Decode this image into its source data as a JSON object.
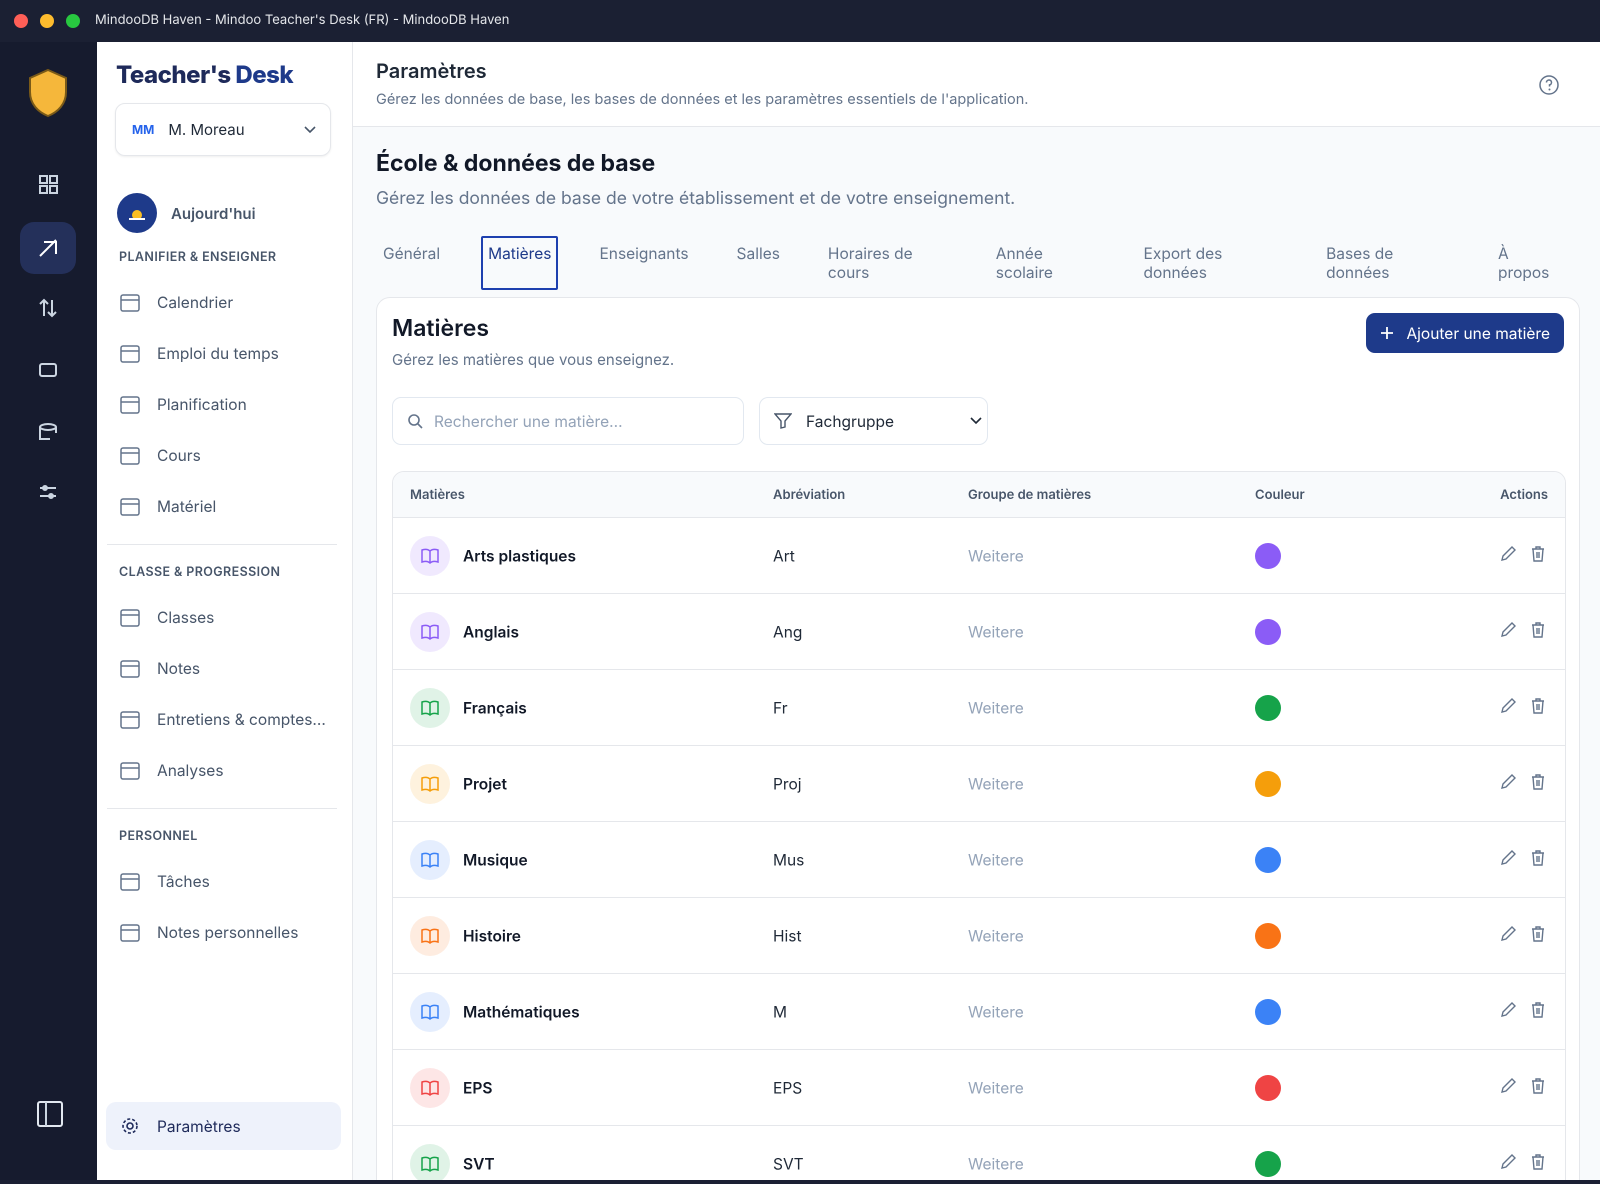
{
  "window_title": "MindooDB Haven - Mindoo Teacher's Desk (FR) - MindooDB Haven",
  "brand": {
    "part1": "Teacher's",
    "part2": "Desk"
  },
  "user": {
    "initials": "MM",
    "name": "M. Moreau"
  },
  "today": "Aujourd'hui",
  "nav_sections": [
    {
      "title": "PLANIFIER & ENSEIGNER",
      "items": [
        "Calendrier",
        "Emploi du temps",
        "Planification",
        "Cours",
        "Matériel"
      ]
    },
    {
      "title": "CLASSE & PROGRESSION",
      "items": [
        "Classes",
        "Notes",
        "Entretiens & comptes...",
        "Analyses"
      ]
    },
    {
      "title": "PERSONNEL",
      "items": [
        "Tâches",
        "Notes personnelles"
      ]
    }
  ],
  "settings_item": "Paramètres",
  "header": {
    "title": "Paramètres",
    "subtitle": "Gérez les données de base, les bases de données et les paramètres essentiels de l'application."
  },
  "section": {
    "title": "École & données de base",
    "subtitle": "Gérez les données de base de votre établissement et de votre enseignement."
  },
  "tabs": [
    "Général",
    "Matières",
    "Enseignants",
    "Salles",
    "Horaires de cours",
    "Année scolaire",
    "Export des données",
    "Bases de données",
    "À propos"
  ],
  "active_tab": 1,
  "panel": {
    "title": "Matières",
    "subtitle": "Gérez les matières que vous enseignez.",
    "add_button": "Ajouter une matière",
    "search_placeholder": "Rechercher une matière...",
    "filter": "Fachgruppe"
  },
  "table": {
    "columns": [
      "Matières",
      "Abréviation",
      "Groupe de matières",
      "Couleur",
      "Actions"
    ],
    "rows": [
      {
        "name": "Arts plastiques",
        "abbr": "Art",
        "group": "Weitere",
        "color": "#8b5cf6"
      },
      {
        "name": "Anglais",
        "abbr": "Ang",
        "group": "Weitere",
        "color": "#8b5cf6"
      },
      {
        "name": "Français",
        "abbr": "Fr",
        "group": "Weitere",
        "color": "#16a34a"
      },
      {
        "name": "Projet",
        "abbr": "Proj",
        "group": "Weitere",
        "color": "#f59e0b"
      },
      {
        "name": "Musique",
        "abbr": "Mus",
        "group": "Weitere",
        "color": "#3b82f6"
      },
      {
        "name": "Histoire",
        "abbr": "Hist",
        "group": "Weitere",
        "color": "#f97316"
      },
      {
        "name": "Mathématiques",
        "abbr": "M",
        "group": "Weitere",
        "color": "#3b82f6"
      },
      {
        "name": "EPS",
        "abbr": "EPS",
        "group": "Weitere",
        "color": "#ef4444"
      },
      {
        "name": "SVT",
        "abbr": "SVT",
        "group": "Weitere",
        "color": "#16a34a"
      }
    ]
  }
}
